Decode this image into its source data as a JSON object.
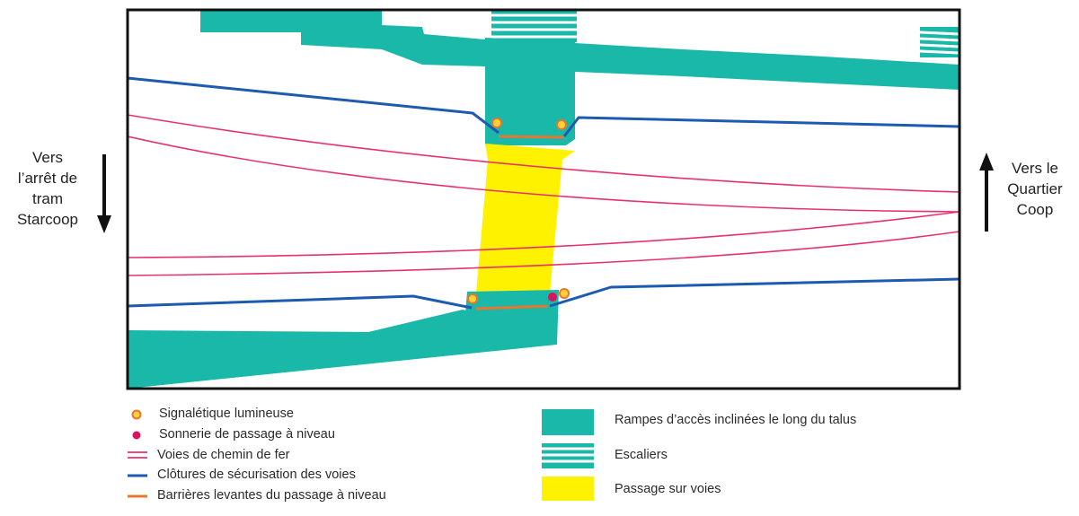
{
  "directions": {
    "left": {
      "lines": [
        "Vers",
        "l’arrêt de",
        "tram",
        "Starcoop"
      ]
    },
    "right": {
      "lines": [
        "Vers le",
        "Quartier",
        "Coop"
      ]
    }
  },
  "legend": {
    "left": [
      {
        "label": "Signalétique lumineuse",
        "symbol": "yellow-dot"
      },
      {
        "label": "Sonnerie de passage à niveau",
        "symbol": "red-dot"
      },
      {
        "label": "Voies de chemin de fer",
        "symbol": "rail-lines"
      },
      {
        "label": "Clôtures de sécurisation des voies",
        "symbol": "blue-line"
      },
      {
        "label": "Barrières levantes du passage à niveau",
        "symbol": "orange-line"
      }
    ],
    "right": [
      {
        "label": "Rampes d’accès inclinées le long du talus",
        "symbol": "teal-block"
      },
      {
        "label": "Escaliers",
        "symbol": "stairs-block"
      },
      {
        "label": "Passage sur voies",
        "symbol": "yellow-block"
      }
    ]
  },
  "colors": {
    "ramp": "#1ab8a8",
    "crossing": "#fff200",
    "rail": "#e8306e",
    "fence": "#1d5bb0",
    "barrier": "#e8762d",
    "signal_fill": "#ffd23a",
    "signal_stroke": "#e8762d",
    "bell": "#d9145e",
    "frame": "#111111"
  }
}
